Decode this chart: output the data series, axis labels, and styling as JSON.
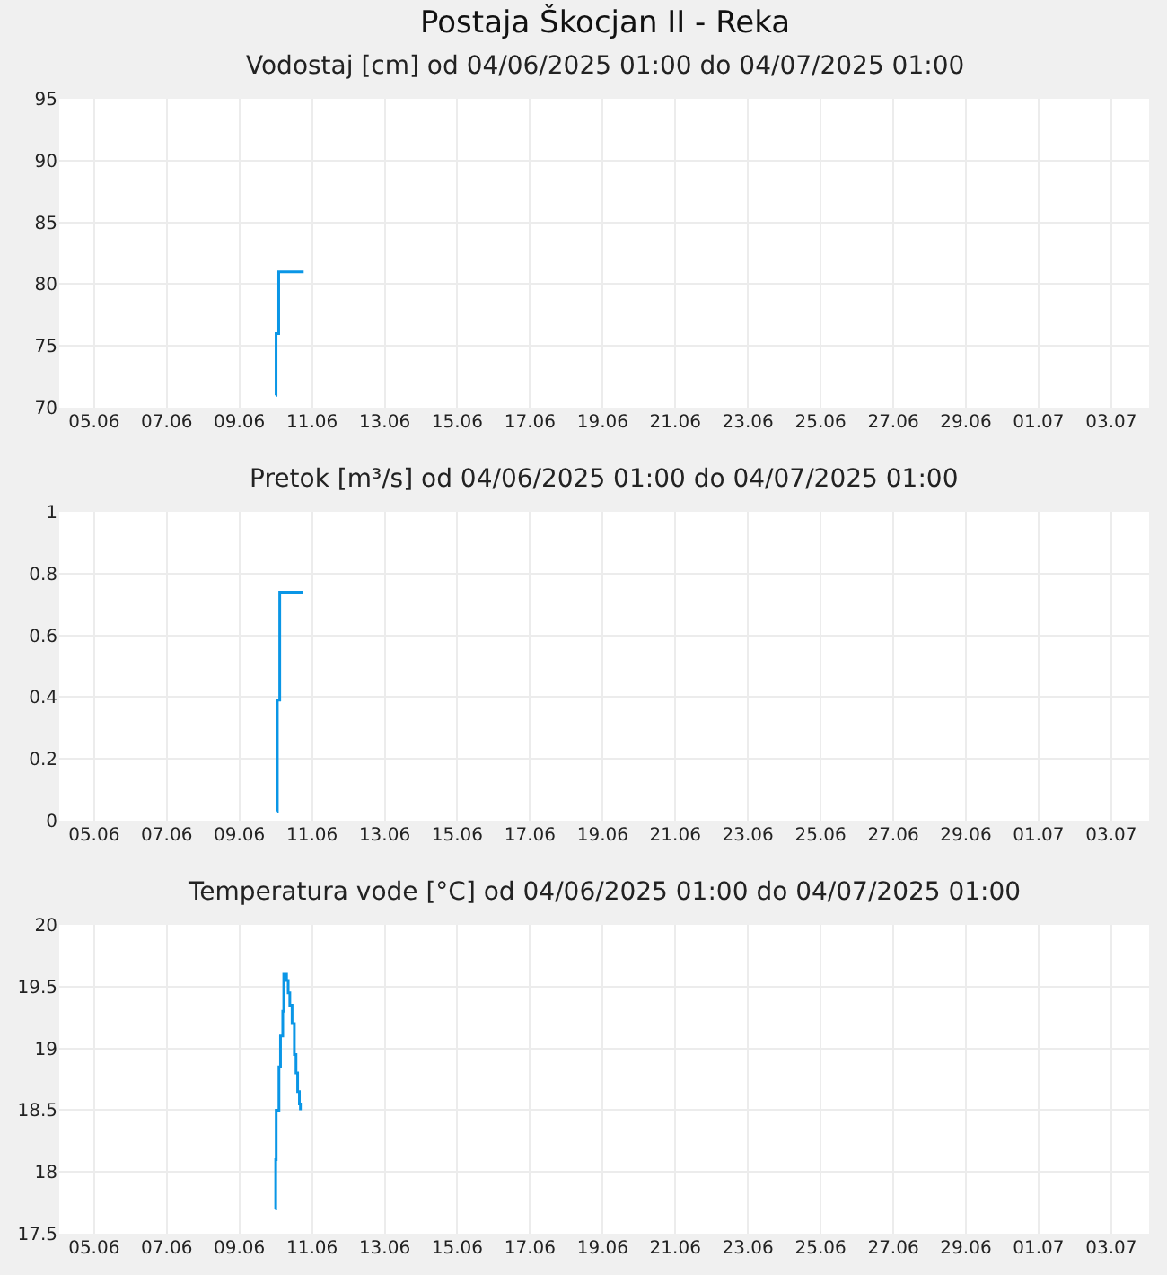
{
  "chart_data": [
    {
      "type": "step",
      "title": "Postaja Škocjan II - Reka",
      "subtitle": "Vodostaj [cm] od 04/06/2025 01:00 do 04/07/2025 01:00",
      "x": [
        "2025-06-10T00:00",
        "2025-06-10T00:15",
        "2025-06-10T02:00",
        "2025-06-10T18:30"
      ],
      "series": [
        {
          "color": "#0a96e6",
          "values": [
            71,
            76,
            81,
            81
          ]
        }
      ],
      "xlim": [
        "2025-06-04T01:00",
        "2025-07-04T01:00"
      ],
      "xticks": [
        {
          "value": "2025-06-05",
          "label": "05.06"
        },
        {
          "value": "2025-06-07",
          "label": "07.06"
        },
        {
          "value": "2025-06-09",
          "label": "09.06"
        },
        {
          "value": "2025-06-11",
          "label": "11.06"
        },
        {
          "value": "2025-06-13",
          "label": "13.06"
        },
        {
          "value": "2025-06-15",
          "label": "15.06"
        },
        {
          "value": "2025-06-17",
          "label": "17.06"
        },
        {
          "value": "2025-06-19",
          "label": "19.06"
        },
        {
          "value": "2025-06-21",
          "label": "21.06"
        },
        {
          "value": "2025-06-23",
          "label": "23.06"
        },
        {
          "value": "2025-06-25",
          "label": "25.06"
        },
        {
          "value": "2025-06-27",
          "label": "27.06"
        },
        {
          "value": "2025-06-29",
          "label": "29.06"
        },
        {
          "value": "2025-07-01",
          "label": "01.07"
        },
        {
          "value": "2025-07-03",
          "label": "03.07"
        }
      ],
      "ylim": [
        70,
        95
      ],
      "yticks": [
        70,
        75,
        80,
        85,
        90,
        95
      ],
      "grid": true
    },
    {
      "type": "step",
      "title": "Pretok [m³/s] od 04/06/2025 01:00 do 04/07/2025 01:00",
      "x": [
        "2025-06-10T01:00",
        "2025-06-10T01:05",
        "2025-06-10T02:40",
        "2025-06-10T18:15"
      ],
      "series": [
        {
          "color": "#0a96e6",
          "values": [
            0.03,
            0.39,
            0.74,
            0.74
          ]
        }
      ],
      "xlim": [
        "2025-06-04T01:00",
        "2025-07-04T01:00"
      ],
      "xticks": [
        {
          "value": "2025-06-05",
          "label": "05.06"
        },
        {
          "value": "2025-06-07",
          "label": "07.06"
        },
        {
          "value": "2025-06-09",
          "label": "09.06"
        },
        {
          "value": "2025-06-11",
          "label": "11.06"
        },
        {
          "value": "2025-06-13",
          "label": "13.06"
        },
        {
          "value": "2025-06-15",
          "label": "15.06"
        },
        {
          "value": "2025-06-17",
          "label": "17.06"
        },
        {
          "value": "2025-06-19",
          "label": "19.06"
        },
        {
          "value": "2025-06-21",
          "label": "21.06"
        },
        {
          "value": "2025-06-23",
          "label": "23.06"
        },
        {
          "value": "2025-06-25",
          "label": "25.06"
        },
        {
          "value": "2025-06-27",
          "label": "27.06"
        },
        {
          "value": "2025-06-29",
          "label": "29.06"
        },
        {
          "value": "2025-07-01",
          "label": "01.07"
        },
        {
          "value": "2025-07-03",
          "label": "03.07"
        }
      ],
      "ylim": [
        0,
        1
      ],
      "yticks": [
        0,
        0.2,
        0.4,
        0.6,
        0.8,
        1
      ],
      "grid": true
    },
    {
      "type": "step",
      "title": "Temperatura vode [°C] od 04/06/2025 01:00 do 04/07/2025 01:00",
      "x": [
        "2025-06-09T23:40",
        "2025-06-10T00:00",
        "2025-06-10T00:20",
        "2025-06-10T02:10",
        "2025-06-10T03:10",
        "2025-06-10T04:40",
        "2025-06-10T05:20",
        "2025-06-10T07:10",
        "2025-06-10T08:15",
        "2025-06-10T09:20",
        "2025-06-10T10:50",
        "2025-06-10T12:20",
        "2025-06-10T13:25",
        "2025-06-10T14:30",
        "2025-06-10T15:40",
        "2025-06-10T16:20"
      ],
      "series": [
        {
          "color": "#0a96e6",
          "values": [
            17.7,
            18.1,
            18.5,
            18.85,
            19.1,
            19.3,
            19.6,
            19.55,
            19.45,
            19.35,
            19.2,
            18.95,
            18.8,
            18.65,
            18.55,
            18.5
          ]
        }
      ],
      "xlim": [
        "2025-06-04T01:00",
        "2025-07-04T01:00"
      ],
      "xticks": [
        {
          "value": "2025-06-05",
          "label": "05.06"
        },
        {
          "value": "2025-06-07",
          "label": "07.06"
        },
        {
          "value": "2025-06-09",
          "label": "09.06"
        },
        {
          "value": "2025-06-11",
          "label": "11.06"
        },
        {
          "value": "2025-06-13",
          "label": "13.06"
        },
        {
          "value": "2025-06-15",
          "label": "15.06"
        },
        {
          "value": "2025-06-17",
          "label": "17.06"
        },
        {
          "value": "2025-06-19",
          "label": "19.06"
        },
        {
          "value": "2025-06-21",
          "label": "21.06"
        },
        {
          "value": "2025-06-23",
          "label": "23.06"
        },
        {
          "value": "2025-06-25",
          "label": "25.06"
        },
        {
          "value": "2025-06-27",
          "label": "27.06"
        },
        {
          "value": "2025-06-29",
          "label": "29.06"
        },
        {
          "value": "2025-07-01",
          "label": "01.07"
        },
        {
          "value": "2025-07-03",
          "label": "03.07"
        }
      ],
      "ylim": [
        17.5,
        20
      ],
      "yticks": [
        17.5,
        18,
        18.5,
        19,
        19.5,
        20
      ],
      "grid": true
    }
  ]
}
